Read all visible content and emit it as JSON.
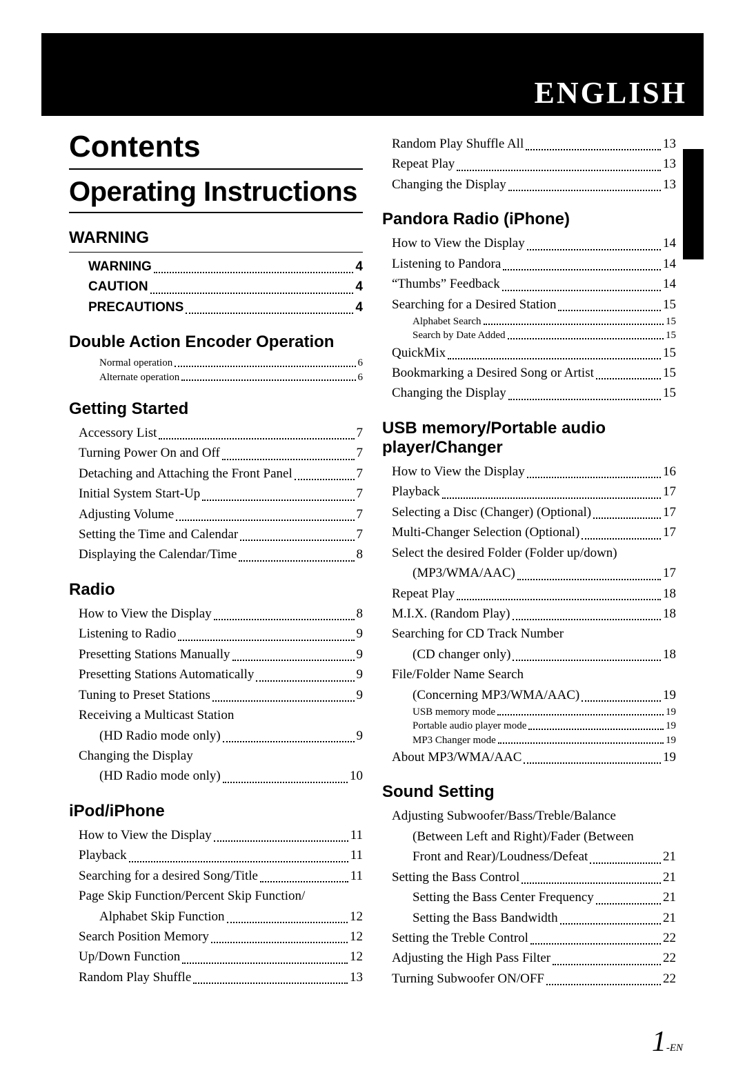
{
  "banner": {
    "language": "ENGLISH"
  },
  "titles": {
    "contents": "Contents",
    "operating_instructions": "Operating Instructions"
  },
  "page_number": {
    "num": "1",
    "suffix": "-EN"
  },
  "left": {
    "warning_section": {
      "heading": "WARNING",
      "items": [
        {
          "label": "WARNING",
          "page": "4",
          "bold": true
        },
        {
          "label": "CAUTION",
          "page": "4",
          "bold": true
        },
        {
          "label": "PRECAUTIONS",
          "page": "4",
          "bold": true
        }
      ]
    },
    "double_action": {
      "heading": "Double Action Encoder Operation",
      "items": [
        {
          "label": "Normal operation",
          "page": "6",
          "small": true
        },
        {
          "label": "Alternate operation",
          "page": "6",
          "small": true
        }
      ]
    },
    "getting_started": {
      "heading": "Getting Started",
      "items": [
        {
          "label": "Accessory List",
          "page": "7"
        },
        {
          "label": "Turning Power On and Off",
          "page": "7"
        },
        {
          "label": "Detaching and Attaching the Front Panel",
          "page": "7"
        },
        {
          "label": "Initial System Start-Up",
          "page": "7"
        },
        {
          "label": "Adjusting Volume",
          "page": "7"
        },
        {
          "label": "Setting the Time and Calendar",
          "page": "7"
        },
        {
          "label": "Displaying the Calendar/Time",
          "page": "8"
        }
      ]
    },
    "radio": {
      "heading": "Radio",
      "items": [
        {
          "label": "How to View the Display",
          "page": "8"
        },
        {
          "label": "Listening to Radio",
          "page": "9"
        },
        {
          "label": "Presetting Stations Manually",
          "page": "9"
        },
        {
          "label": "Presetting Stations Automatically",
          "page": "9"
        },
        {
          "label": "Tuning to Preset Stations",
          "page": "9"
        },
        {
          "label": "Receiving a Multicast Station",
          "label2": "(HD Radio mode only)",
          "page": "9"
        },
        {
          "label": "Changing the Display",
          "label2": "(HD Radio mode only)",
          "page": "10"
        }
      ]
    },
    "ipod": {
      "heading": "iPod/iPhone",
      "items": [
        {
          "label": "How to View the Display",
          "page": "11"
        },
        {
          "label": "Playback",
          "page": "11"
        },
        {
          "label": "Searching for a desired Song/Title",
          "page": "11"
        },
        {
          "label": "Page Skip Function/Percent Skip Function/",
          "label2": "Alphabet Skip Function",
          "page": "12"
        },
        {
          "label": "Search Position Memory",
          "page": "12"
        },
        {
          "label": "Up/Down Function",
          "page": "12"
        },
        {
          "label": "Random Play Shuffle",
          "page": "13"
        }
      ]
    }
  },
  "right": {
    "ipod_cont": {
      "items": [
        {
          "label": "Random Play Shuffle All",
          "page": "13"
        },
        {
          "label": "Repeat Play",
          "page": "13"
        },
        {
          "label": "Changing the Display",
          "page": "13"
        }
      ]
    },
    "pandora": {
      "heading": "Pandora Radio (iPhone)",
      "items": [
        {
          "label": "How to View the Display",
          "page": "14"
        },
        {
          "label": "Listening to Pandora",
          "page": "14"
        },
        {
          "label": "“Thumbs” Feedback",
          "page": "14"
        },
        {
          "label": "Searching for a Desired Station",
          "page": "15"
        },
        {
          "label": "Alphabet Search",
          "page": "15",
          "small": true
        },
        {
          "label": "Search by Date Added",
          "page": "15",
          "small": true
        },
        {
          "label": "QuickMix",
          "page": "15"
        },
        {
          "label": "Bookmarking a Desired Song or Artist",
          "page": "15"
        },
        {
          "label": "Changing the Display",
          "page": "15"
        }
      ]
    },
    "usb": {
      "heading": "USB memory/Portable audio player/Changer",
      "items": [
        {
          "label": "How to View the Display",
          "page": "16"
        },
        {
          "label": "Playback",
          "page": "17"
        },
        {
          "label": "Selecting a Disc (Changer) (Optional)",
          "page": "17"
        },
        {
          "label": "Multi-Changer Selection (Optional)",
          "page": "17"
        },
        {
          "label": "Select the desired Folder (Folder up/down)",
          "label2": "(MP3/WMA/AAC)",
          "page": "17"
        },
        {
          "label": "Repeat Play",
          "page": "18"
        },
        {
          "label": "M.I.X. (Random Play)",
          "page": "18"
        },
        {
          "label": "Searching for CD Track Number",
          "label2": "(CD changer only)",
          "page": "18"
        },
        {
          "label": "File/Folder Name Search",
          "label2": "(Concerning MP3/WMA/AAC)",
          "page": "19"
        },
        {
          "label": "USB memory mode",
          "page": "19",
          "small": true
        },
        {
          "label": "Portable audio player mode",
          "page": "19",
          "small": true
        },
        {
          "label": "MP3 Changer mode",
          "page": "19",
          "small": true
        },
        {
          "label": "About MP3/WMA/AAC",
          "page": "19"
        }
      ]
    },
    "sound": {
      "heading": "Sound Setting",
      "items": [
        {
          "label": "Adjusting Subwoofer/Bass/Treble/Balance",
          "label2": "(Between Left and Right)/Fader (Between",
          "label3": "Front and Rear)/Loudness/Defeat",
          "page": "21"
        },
        {
          "label": "Setting the Bass Control",
          "page": "21"
        },
        {
          "label": "Setting the Bass Center Frequency",
          "page": "21",
          "sub": true
        },
        {
          "label": "Setting the Bass Bandwidth",
          "page": "21",
          "sub": true
        },
        {
          "label": "Setting the Treble Control",
          "page": "22"
        },
        {
          "label": "Adjusting the High Pass Filter",
          "page": "22"
        },
        {
          "label": "Turning Subwoofer ON/OFF",
          "page": "22"
        }
      ]
    }
  }
}
